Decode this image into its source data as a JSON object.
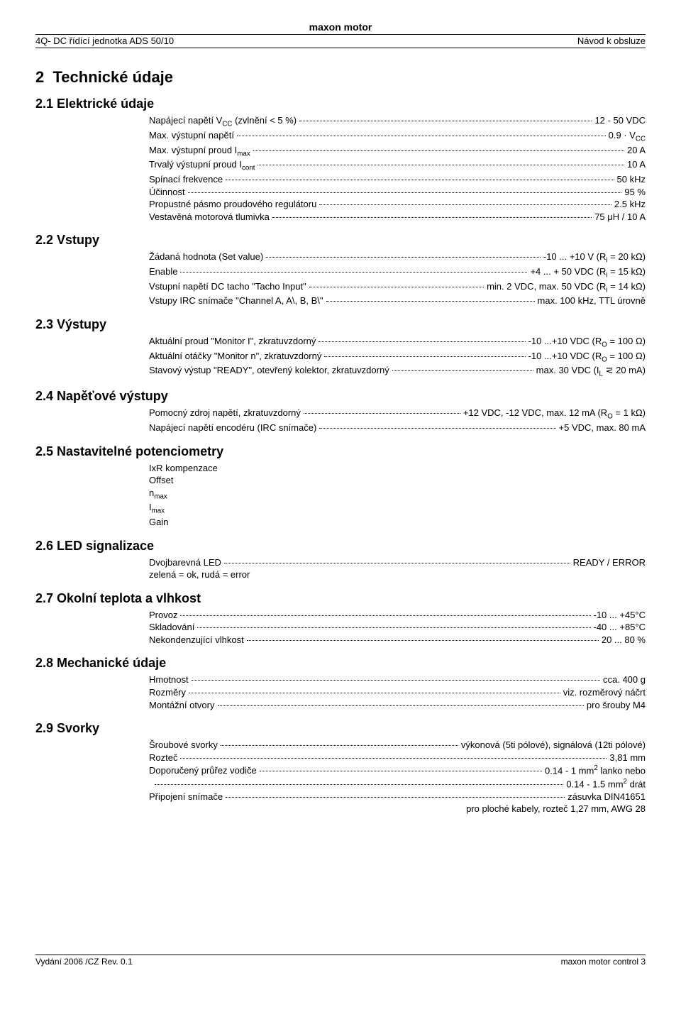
{
  "header": {
    "brand": "maxon motor",
    "left": "4Q- DC řídící jednotka ADS 50/10",
    "right": "Návod k obsluze"
  },
  "title": {
    "num": "2",
    "text": "Technické údaje"
  },
  "s21": {
    "heading": "2.1  Elektrické údaje",
    "rows": [
      {
        "label": "Napájecí napětí V_CC (zvlnění < 5 %)",
        "value": "12 - 50 VDC"
      },
      {
        "label": "Max. výstupní napětí",
        "value": "0.9 · V_CC"
      },
      {
        "label": "Max. výstupní proud I_max",
        "value": "20 A"
      },
      {
        "label": "Trvalý výstupní proud I_cont",
        "value": "10 A"
      },
      {
        "label": "Spínací frekvence",
        "value": "50 kHz"
      },
      {
        "label": "Účinnost",
        "value": "95 %"
      },
      {
        "label": "Propustné pásmo proudového regulátoru",
        "value": "2.5 kHz"
      },
      {
        "label": "Vestavěná motorová tlumivka",
        "value": "75 μH / 10 A"
      }
    ]
  },
  "s22": {
    "heading": "2.2  Vstupy",
    "rows": [
      {
        "label": "Žádaná hodnota (Set value)",
        "value": "-10 ... +10 V   (R_i = 20 kΩ)"
      },
      {
        "label": "Enable",
        "value": "+4 ... + 50 VDC   (R_i = 15 kΩ)"
      },
      {
        "label": "Vstupní napětí DC tacho \"Tacho Input\"",
        "value": "min. 2 VDC, max. 50 VDC   (R_i = 14 kΩ)"
      },
      {
        "label": "Vstupy IRC snímače \"Channel A, A\\, B, B\\\"",
        "value": "max. 100 kHz, TTL úrovně"
      }
    ]
  },
  "s23": {
    "heading": "2.3  Výstupy",
    "rows": [
      {
        "label": "Aktuální proud \"Monitor I\", zkratuvzdorný",
        "value": "-10 ...+10 VDC   (R_O = 100 Ω)"
      },
      {
        "label": "Aktuální otáčky \"Monitor n\", zkratuvzdorný",
        "value": "-10 ...+10 VDC   (R_O = 100 Ω)"
      },
      {
        "label": "Stavový výstup \"READY\", otevřený kolektor, zkratuvzdorný",
        "value": "max. 30 VDC   (I_L ⋜ 20 mA)"
      }
    ]
  },
  "s24": {
    "heading": "2.4  Napěťové výstupy",
    "rows": [
      {
        "label": "Pomocný zdroj napětí, zkratuvzdorný",
        "value": "+12 VDC, -12 VDC, max. 12 mA   (R_O = 1 kΩ)"
      },
      {
        "label": "Napájecí napětí encodéru (IRC snímače)",
        "value": "+5 VDC, max. 80 mA"
      }
    ]
  },
  "s25": {
    "heading": "2.5  Nastavitelné potenciometry",
    "lines": [
      "IxR kompenzace",
      "Offset",
      "n_max",
      "I_max",
      "Gain"
    ]
  },
  "s26": {
    "heading": "2.6  LED signalizace",
    "rows": [
      {
        "label": "Dvojbarevná LED",
        "value": "READY / ERROR"
      }
    ],
    "note": "zelená = ok, rudá = error"
  },
  "s27": {
    "heading": "2.7  Okolní teplota a vlhkost",
    "rows": [
      {
        "label": "Provoz",
        "value": "-10 ... +45°C"
      },
      {
        "label": "Skladování",
        "value": "-40 ... +85°C"
      },
      {
        "label": "Nekondenzující vlhkost",
        "value": "20 ... 80 %"
      }
    ]
  },
  "s28": {
    "heading": "2.8  Mechanické údaje",
    "rows": [
      {
        "label": "Hmotnost",
        "value": "cca. 400 g"
      },
      {
        "label": "Rozměry",
        "value": "viz. rozměrový náčrt"
      },
      {
        "label": "Montážní otvory",
        "value": "pro šrouby M4"
      }
    ]
  },
  "s29": {
    "heading": "2.9  Svorky",
    "rows": [
      {
        "label": "Šroubové svorky",
        "value": "výkonová (5ti pólové), signálová (12ti pólové)"
      },
      {
        "label": "Rozteč",
        "value": "3,81 mm"
      },
      {
        "label": "Doporučený průřez vodiče",
        "value": "0.14 - 1 mm² lanko nebo"
      },
      {
        "label": "",
        "value": "0.14 - 1.5 mm² drát"
      },
      {
        "label": "Připojení snímače",
        "value": "zásuvka DIN41651"
      }
    ],
    "trailer": "pro ploché kabely, rozteč 1,27 mm, AWG 28"
  },
  "footer": {
    "left": "Vydání 2006 /CZ Rev. 0.1",
    "right": "maxon motor control 3"
  }
}
